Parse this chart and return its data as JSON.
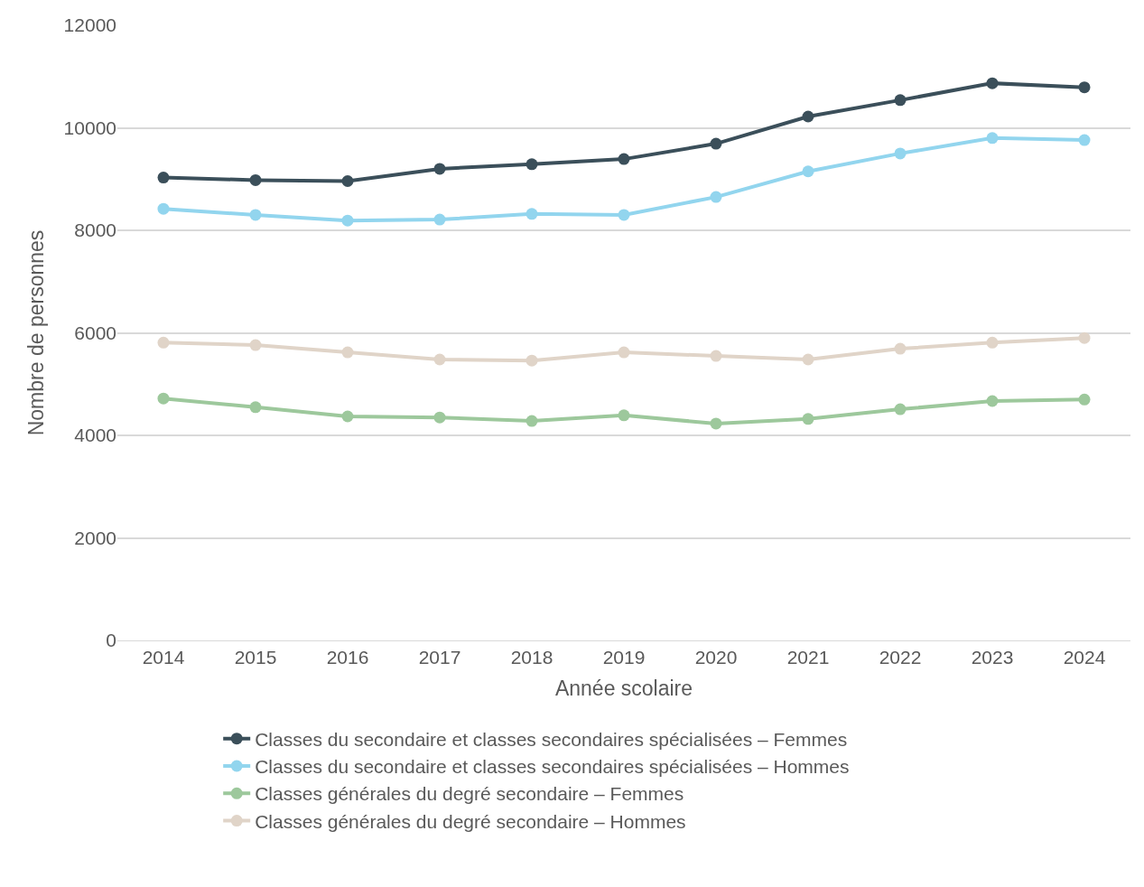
{
  "chart_data": {
    "type": "line",
    "xlabel": "Année scolaire",
    "ylabel": "Nombre de personnes",
    "categories": [
      "2014",
      "2015",
      "2016",
      "2017",
      "2018",
      "2019",
      "2020",
      "2021",
      "2022",
      "2023",
      "2024"
    ],
    "series": [
      {
        "name": "Classes du secondaire et classes secondaires spécialisées – Femmes",
        "color": "#3b4f5a",
        "values": [
          9030,
          8980,
          8960,
          9200,
          9290,
          9390,
          9690,
          10220,
          10540,
          10870,
          10790
        ]
      },
      {
        "name": "Classes du secondaire et classes secondaires spécialisées – Hommes",
        "color": "#92d5ee",
        "values": [
          8420,
          8300,
          8190,
          8210,
          8320,
          8300,
          8650,
          9150,
          9500,
          9800,
          9760
        ]
      },
      {
        "name": "Classes générales du degré secondaire – Femmes",
        "color": "#9dc89c",
        "values": [
          4720,
          4550,
          4370,
          4350,
          4280,
          4390,
          4230,
          4320,
          4510,
          4670,
          4700
        ]
      },
      {
        "name": "Classes générales du degré secondaire – Hommes",
        "color": "#e0d4c8",
        "values": [
          5810,
          5760,
          5620,
          5480,
          5460,
          5620,
          5550,
          5480,
          5690,
          5810,
          5900
        ]
      }
    ],
    "ylim": [
      0,
      12000
    ],
    "yticks": [
      0,
      2000,
      4000,
      6000,
      8000,
      10000,
      12000
    ],
    "grid": "y",
    "legend": "bottom",
    "marker": "circle",
    "line_style": "solid"
  }
}
